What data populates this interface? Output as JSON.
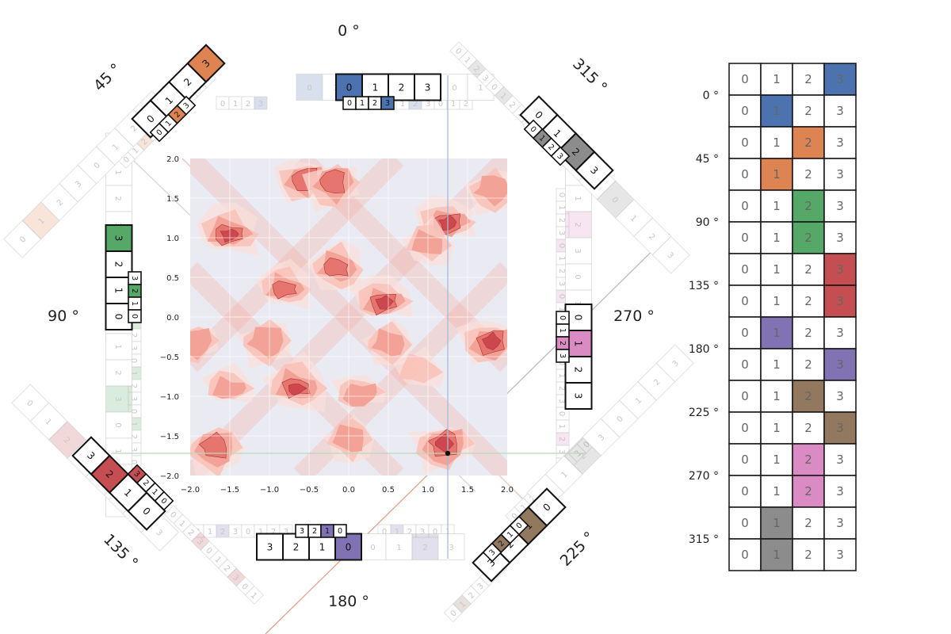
{
  "angles": [
    "0 °",
    "45 °",
    "90 °",
    "135 °",
    "180 °",
    "225 °",
    "270 °",
    "315 °"
  ],
  "colors": {
    "blue": "#4c72b0",
    "orange": "#dd8452",
    "green": "#55a868",
    "red": "#c44e52",
    "purple": "#8172b3",
    "brown": "#937860",
    "pink": "#da8bc3",
    "gray": "#8c8c8c",
    "heat_bg": "#eaeaf2"
  },
  "chart_data": {
    "type": "heatmap",
    "xlim": [
      -2.0,
      2.0
    ],
    "ylim": [
      -2.0,
      2.0
    ],
    "x_ticks": [
      "−2.0",
      "−1.5",
      "−1.0",
      "−0.5",
      "0.0",
      "0.5",
      "1.0",
      "1.5",
      "2.0"
    ],
    "y_ticks": [
      "2.0",
      "1.5",
      "1.0",
      "0.5",
      "0.0",
      "−0.5",
      "−1.0",
      "−1.5",
      "−2.0"
    ],
    "marked_point": [
      1.25,
      -1.72
    ],
    "hotspots": [
      {
        "x": -1.5,
        "y": 1.05,
        "v": 1.0
      },
      {
        "x": 1.25,
        "y": 1.2,
        "v": 0.95
      },
      {
        "x": -0.55,
        "y": 1.75,
        "v": 0.85
      },
      {
        "x": -0.2,
        "y": 1.7,
        "v": 0.8
      },
      {
        "x": 1.8,
        "y": 1.6,
        "v": 0.55
      },
      {
        "x": -0.15,
        "y": 0.6,
        "v": 0.75
      },
      {
        "x": -0.8,
        "y": 0.35,
        "v": 0.7
      },
      {
        "x": 0.45,
        "y": 0.2,
        "v": 0.9
      },
      {
        "x": 1.8,
        "y": -0.3,
        "v": 1.0
      },
      {
        "x": -1.95,
        "y": -0.3,
        "v": 0.6
      },
      {
        "x": -1.05,
        "y": -0.3,
        "v": 0.65
      },
      {
        "x": 0.5,
        "y": -0.35,
        "v": 0.5
      },
      {
        "x": -0.65,
        "y": -0.9,
        "v": 0.95
      },
      {
        "x": -1.5,
        "y": -0.9,
        "v": 0.55
      },
      {
        "x": 0.15,
        "y": -0.95,
        "v": 0.6
      },
      {
        "x": 1.2,
        "y": -1.6,
        "v": 1.0
      },
      {
        "x": -1.7,
        "y": -1.65,
        "v": 0.85
      },
      {
        "x": 0.0,
        "y": -1.55,
        "v": 0.5
      },
      {
        "x": 1.0,
        "y": 0.9,
        "v": 0.5
      },
      {
        "x": 0.9,
        "y": -0.7,
        "v": 0.45
      }
    ]
  },
  "compass_strips": [
    {
      "angle": 0,
      "values": [
        "0",
        "1",
        "2",
        "3"
      ],
      "active": 0,
      "color": "blue",
      "scale": [
        0,
        1,
        2,
        3
      ],
      "scale_active": 3
    },
    {
      "angle": 45,
      "values": [
        "0",
        "1",
        "2",
        "3"
      ],
      "active": 3,
      "color": "orange",
      "scale": [
        0,
        1,
        2,
        3
      ],
      "scale_active": 2
    },
    {
      "angle": 90,
      "values": [
        "0",
        "1",
        "2",
        "3"
      ],
      "active": 3,
      "color": "green",
      "scale": [
        0,
        1,
        2,
        3
      ],
      "scale_active": 2
    },
    {
      "angle": 135,
      "values": [
        "0",
        "1",
        "2",
        "3"
      ],
      "active": 2,
      "color": "red",
      "scale": [
        0,
        1,
        2,
        3
      ],
      "scale_active": 3
    },
    {
      "angle": 180,
      "values": [
        "0",
        "1",
        "2",
        "3"
      ],
      "active": 0,
      "color": "purple",
      "scale": [
        0,
        1,
        2,
        3
      ],
      "scale_active": 1
    },
    {
      "angle": 225,
      "values": [
        "0",
        "1",
        "2",
        "3"
      ],
      "active": 1,
      "color": "brown",
      "scale": [
        0,
        1,
        2,
        3
      ],
      "scale_active": 2
    },
    {
      "angle": 270,
      "values": [
        "0",
        "1",
        "2",
        "3"
      ],
      "active": 1,
      "color": "pink",
      "scale": [
        0,
        1,
        2,
        3
      ],
      "scale_active": 2
    },
    {
      "angle": 315,
      "values": [
        "0",
        "1",
        "2",
        "3"
      ],
      "active": 2,
      "color": "gray",
      "scale": [
        0,
        1,
        2,
        3
      ],
      "scale_active": 1
    }
  ],
  "table": {
    "columns": [
      "0",
      "1",
      "2",
      "3"
    ],
    "rows": [
      {
        "label": "0 °",
        "active": 3,
        "color": "blue"
      },
      {
        "label": "",
        "active": 1,
        "color": "blue"
      },
      {
        "label": "45 °",
        "active": 2,
        "color": "orange"
      },
      {
        "label": "",
        "active": 1,
        "color": "orange"
      },
      {
        "label": "90 °",
        "active": 2,
        "color": "green"
      },
      {
        "label": "",
        "active": 2,
        "color": "green"
      },
      {
        "label": "135 °",
        "active": 3,
        "color": "red"
      },
      {
        "label": "",
        "active": 3,
        "color": "red"
      },
      {
        "label": "180 °",
        "active": 1,
        "color": "purple"
      },
      {
        "label": "",
        "active": 3,
        "color": "purple"
      },
      {
        "label": "225 °",
        "active": 2,
        "color": "brown"
      },
      {
        "label": "",
        "active": 3,
        "color": "brown"
      },
      {
        "label": "270 °",
        "active": 2,
        "color": "pink"
      },
      {
        "label": "",
        "active": 2,
        "color": "pink"
      },
      {
        "label": "315 °",
        "active": 1,
        "color": "gray"
      },
      {
        "label": "",
        "active": 1,
        "color": "gray"
      }
    ]
  }
}
